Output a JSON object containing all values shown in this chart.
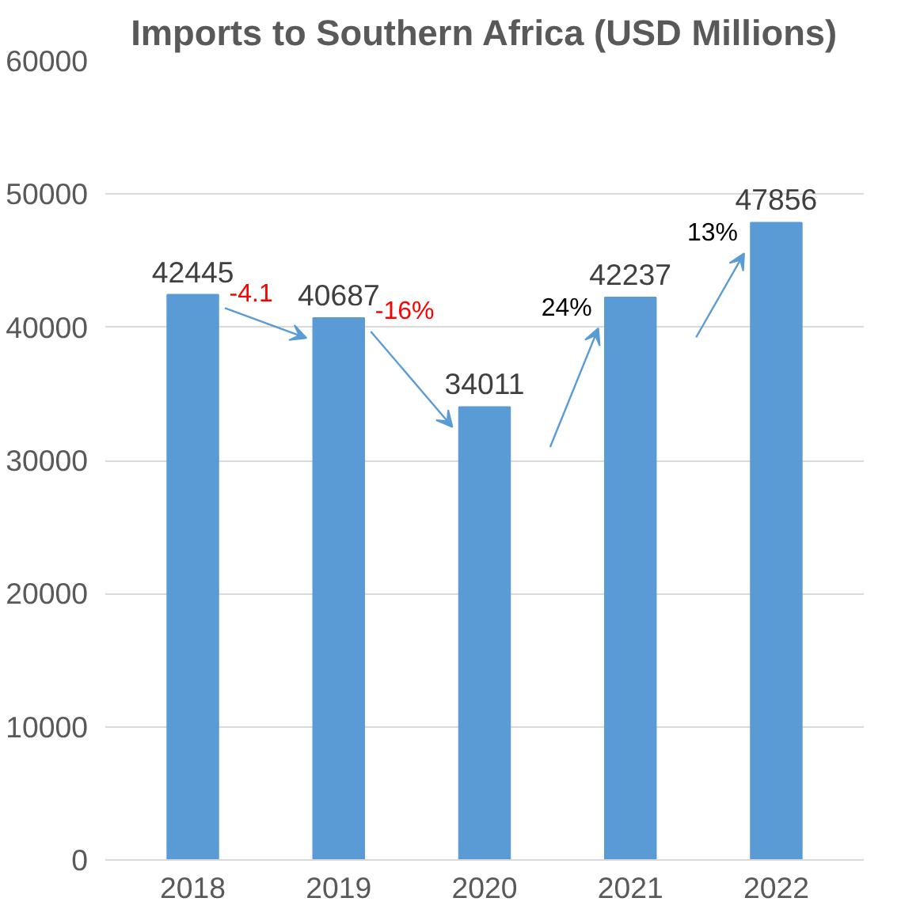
{
  "chart_data": {
    "type": "bar",
    "title": "Imports to Southern Africa (USD Millions)",
    "categories": [
      "2018",
      "2019",
      "2020",
      "2021",
      "2022"
    ],
    "values": [
      42445,
      40687,
      34011,
      42237,
      47856
    ],
    "color": "#5b9bd5",
    "ylim": [
      0,
      60000
    ],
    "yticks": [
      0,
      10000,
      20000,
      30000,
      40000,
      50000,
      60000
    ],
    "grid": "y",
    "data_labels": true,
    "annotations": [
      "-4.1",
      "-16%",
      "24%",
      "13%"
    ]
  }
}
